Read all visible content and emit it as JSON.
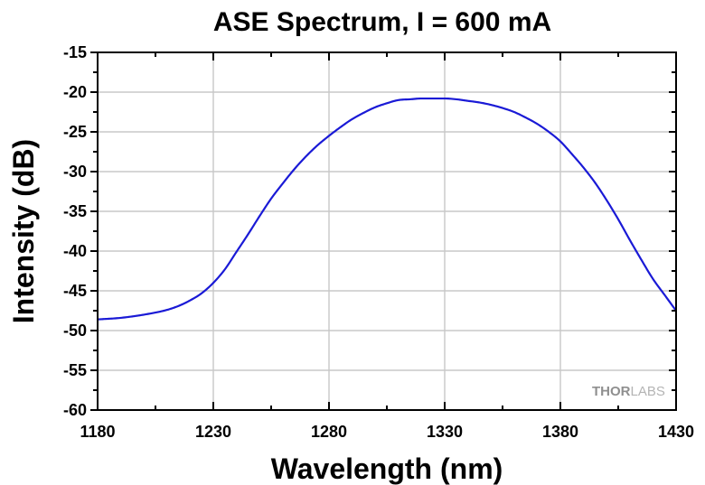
{
  "chart_data": {
    "type": "line",
    "title": "ASE Spectrum, I = 600 mA",
    "xlabel": "Wavelength (nm)",
    "ylabel": "Intensity (dB)",
    "xlim": [
      1180,
      1430
    ],
    "ylim": [
      -60,
      -15
    ],
    "x_ticks": [
      1180,
      1230,
      1280,
      1330,
      1380,
      1430
    ],
    "y_ticks": [
      -15,
      -20,
      -25,
      -30,
      -35,
      -40,
      -45,
      -50,
      -55,
      -60
    ],
    "grid": true,
    "line_color": "#1a1ad6",
    "series": [
      {
        "x": [
          1180,
          1190,
          1200,
          1210,
          1215,
          1220,
          1225,
          1230,
          1235,
          1240,
          1245,
          1250,
          1255,
          1260,
          1265,
          1270,
          1275,
          1280,
          1285,
          1290,
          1295,
          1300,
          1305,
          1310,
          1315,
          1320,
          1325,
          1330,
          1335,
          1340,
          1345,
          1350,
          1355,
          1360,
          1365,
          1370,
          1375,
          1380,
          1385,
          1390,
          1395,
          1400,
          1405,
          1410,
          1415,
          1420,
          1425,
          1430
        ],
        "y": [
          -48.6,
          -48.4,
          -48.0,
          -47.4,
          -46.9,
          -46.2,
          -45.3,
          -44.0,
          -42.3,
          -40.1,
          -37.9,
          -35.6,
          -33.4,
          -31.5,
          -29.7,
          -28.1,
          -26.7,
          -25.5,
          -24.4,
          -23.4,
          -22.6,
          -21.9,
          -21.4,
          -21.0,
          -20.9,
          -20.8,
          -20.8,
          -20.8,
          -20.9,
          -21.1,
          -21.3,
          -21.6,
          -22.0,
          -22.5,
          -23.2,
          -24.0,
          -25.0,
          -26.2,
          -27.8,
          -29.5,
          -31.4,
          -33.6,
          -36.0,
          -38.6,
          -41.1,
          -43.5,
          -45.5,
          -47.5
        ]
      }
    ],
    "watermark": {
      "part1": "THOR",
      "part2": "LABS"
    }
  }
}
